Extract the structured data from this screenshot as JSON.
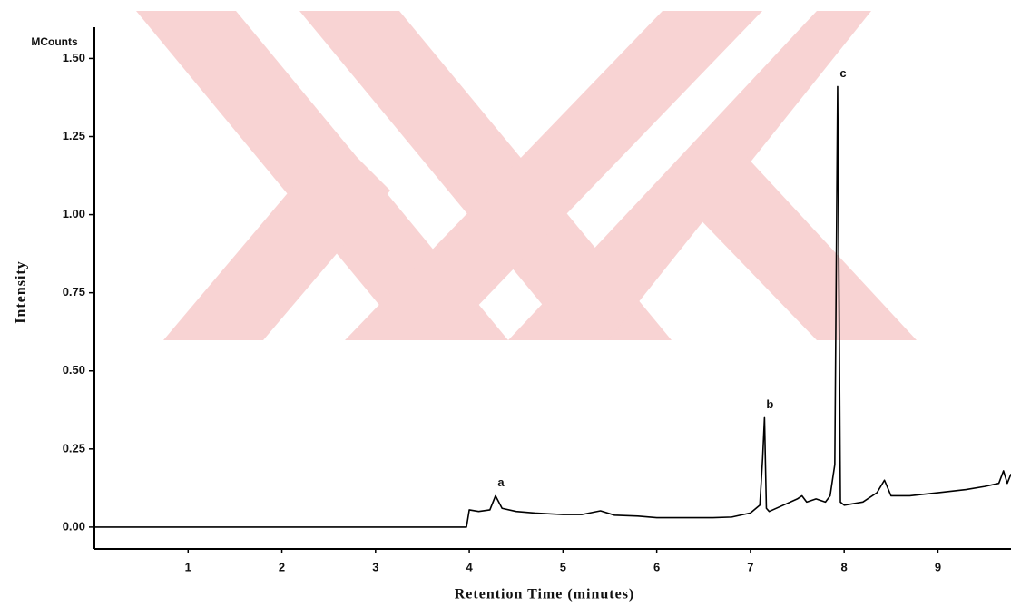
{
  "chart_data": {
    "type": "line",
    "y_unit": "MCounts",
    "y_label": "Intensity",
    "x_label": "Retention Time (minutes)",
    "x": [
      0,
      1,
      2,
      3,
      3.97,
      4.0,
      4.1,
      4.22,
      4.28,
      4.35,
      4.5,
      4.7,
      5.0,
      5.2,
      5.4,
      5.55,
      5.8,
      6.0,
      6.3,
      6.6,
      6.8,
      7.0,
      7.1,
      7.13,
      7.15,
      7.17,
      7.2,
      7.35,
      7.5,
      7.55,
      7.6,
      7.7,
      7.8,
      7.85,
      7.9,
      7.93,
      7.96,
      8.0,
      8.2,
      8.35,
      8.43,
      8.5,
      8.7,
      9.0,
      9.3,
      9.5,
      9.65,
      9.7,
      9.74,
      9.78
    ],
    "values": [
      0,
      0,
      0,
      0,
      0,
      0.055,
      0.05,
      0.055,
      0.1,
      0.06,
      0.05,
      0.045,
      0.04,
      0.04,
      0.052,
      0.038,
      0.035,
      0.03,
      0.03,
      0.03,
      0.032,
      0.045,
      0.07,
      0.22,
      0.35,
      0.06,
      0.05,
      0.07,
      0.09,
      0.1,
      0.08,
      0.09,
      0.08,
      0.1,
      0.2,
      1.41,
      0.08,
      0.07,
      0.08,
      0.11,
      0.15,
      0.1,
      0.1,
      0.11,
      0.12,
      0.13,
      0.14,
      0.18,
      0.14,
      0.17
    ],
    "color": "#000000",
    "xlim": [
      0,
      9.78
    ],
    "ylim": [
      -0.07,
      1.6
    ],
    "xticks": [
      1,
      2,
      3,
      4,
      5,
      6,
      7,
      8,
      9
    ],
    "yticks": [
      {
        "value": 0,
        "label": "0.00"
      },
      {
        "value": 0.25,
        "label": "0.25"
      },
      {
        "value": 0.5,
        "label": "0.50"
      },
      {
        "value": 0.75,
        "label": "0.75"
      },
      {
        "value": 1,
        "label": "1.00"
      },
      {
        "value": 1.25,
        "label": "1.25"
      },
      {
        "value": 1.5,
        "label": "1.50"
      }
    ],
    "grid": false,
    "annotations": [
      {
        "text": "a",
        "x": 4.28,
        "y": 0.1
      },
      {
        "text": "b",
        "x": 7.15,
        "y": 0.35
      },
      {
        "text": "c",
        "x": 7.93,
        "y": 1.41
      }
    ]
  }
}
